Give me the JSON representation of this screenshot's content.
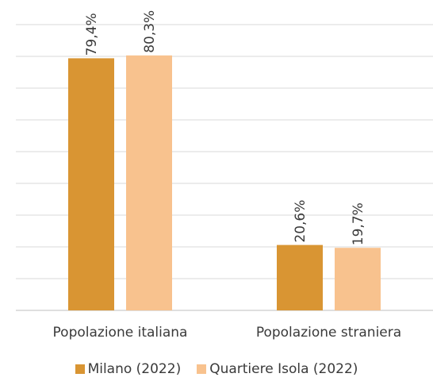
{
  "chart_data": {
    "type": "bar",
    "categories": [
      "Popolazione italiana",
      "Popolazione straniera"
    ],
    "series": [
      {
        "name": "Milano (2022)",
        "values": [
          79.4,
          20.6
        ],
        "labels": [
          "79,4%",
          "20,6%"
        ],
        "color": "#d99533"
      },
      {
        "name": "Quartiere Isola (2022)",
        "values": [
          80.3,
          19.7
        ],
        "labels": [
          "80,3%",
          "19,7%"
        ],
        "color": "#f8c28e"
      }
    ],
    "ylim": [
      0,
      90
    ],
    "grid": true,
    "legend": "bottom"
  }
}
